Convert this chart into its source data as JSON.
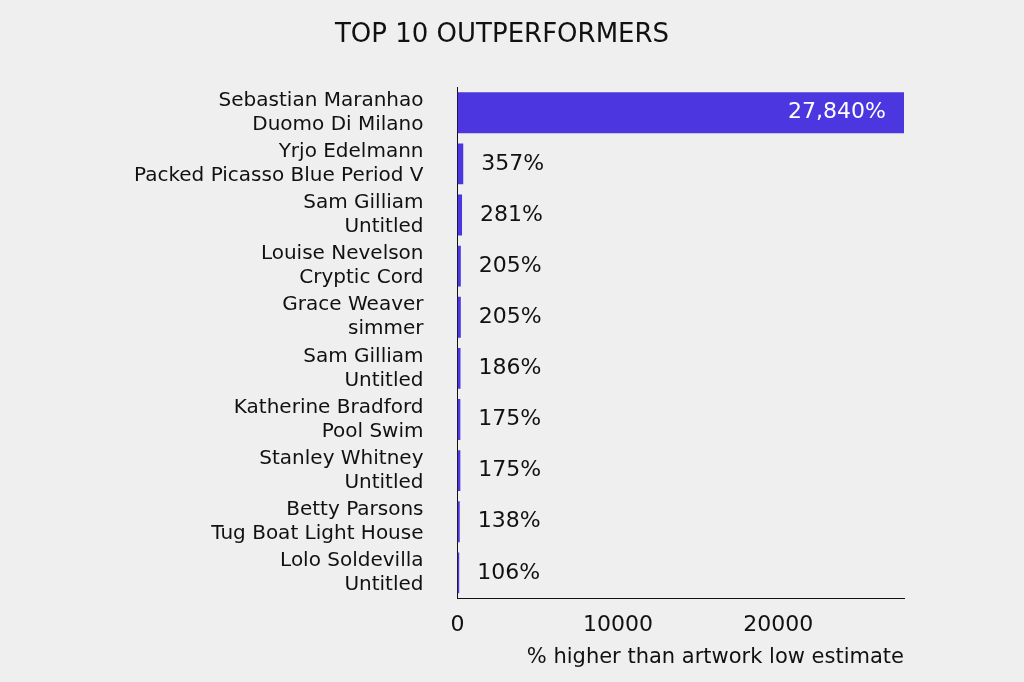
{
  "chart_data": {
    "type": "bar",
    "orientation": "horizontal",
    "title": "TOP 10 OUTPERFORMERS",
    "xlabel": "% higher than artwork low estimate",
    "categories": [
      "Sebastian Maranhao\nDuomo Di Milano",
      "Yrjo Edelmann\nPacked Picasso Blue Period V",
      "Sam Gilliam\nUntitled",
      "Louise Nevelson\nCryptic Cord",
      "Grace Weaver\nsimmer",
      "Sam Gilliam\nUntitled",
      "Katherine Bradford\nPool Swim",
      "Stanley Whitney\nUntitled",
      "Betty Parsons\nTug Boat Light House",
      "Lolo Soldevilla\nUntitled"
    ],
    "values": [
      27840,
      357,
      281,
      205,
      205,
      186,
      175,
      175,
      138,
      106
    ],
    "value_labels": [
      "27,840%",
      "357%",
      "281%",
      "205%",
      "205%",
      "186%",
      "175%",
      "175%",
      "138%",
      "106%"
    ],
    "color": "#4b36e0",
    "xlim": [
      0,
      27840
    ],
    "xticks": [
      0,
      10000,
      20000
    ],
    "grid": false,
    "legend": false
  }
}
